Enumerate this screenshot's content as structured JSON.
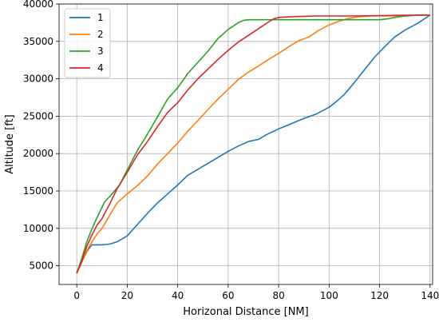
{
  "chart_data": {
    "type": "line",
    "title": "",
    "xlabel": "Horizonal Distance [NM]",
    "ylabel": "Altitude [ft]",
    "xlim": [
      -7,
      141
    ],
    "ylim": [
      2500,
      40000
    ],
    "xticks": [
      0,
      20,
      40,
      60,
      80,
      100,
      120,
      140
    ],
    "yticks": [
      5000,
      10000,
      15000,
      20000,
      25000,
      30000,
      35000,
      40000
    ],
    "grid": true,
    "legend_position": "top-left",
    "series": [
      {
        "name": "1",
        "color": "#1f77b4",
        "x": [
          0,
          2,
          4,
          6,
          8,
          10,
          13,
          16,
          20,
          24,
          28,
          32,
          36,
          40,
          44,
          48,
          52,
          56,
          60,
          64,
          68,
          72,
          75,
          80,
          85,
          90,
          95,
          100,
          103,
          106,
          110,
          114,
          118,
          122,
          126,
          130,
          135,
          140
        ],
        "y": [
          4000,
          5500,
          6900,
          7800,
          7800,
          7800,
          7900,
          8200,
          9000,
          10500,
          12000,
          13400,
          14600,
          15800,
          17100,
          17900,
          18700,
          19500,
          20300,
          21000,
          21600,
          21900,
          22500,
          23300,
          24000,
          24700,
          25300,
          26200,
          27000,
          27900,
          29500,
          31200,
          32900,
          34300,
          35600,
          36500,
          37400,
          38500
        ]
      },
      {
        "name": "2",
        "color": "#ff7f0e",
        "x": [
          0,
          2,
          4,
          6,
          8,
          10,
          13,
          16,
          20,
          24,
          28,
          32,
          36,
          40,
          44,
          48,
          52,
          56,
          60,
          64,
          68,
          72,
          76,
          80,
          84,
          88,
          92,
          96,
          100,
          104,
          108,
          112,
          116,
          120,
          125,
          130,
          135,
          140
        ],
        "y": [
          4000,
          5500,
          7000,
          8200,
          9200,
          10000,
          11700,
          13400,
          14600,
          15700,
          17000,
          18600,
          20000,
          21400,
          23000,
          24400,
          25900,
          27300,
          28600,
          29900,
          30900,
          31700,
          32600,
          33400,
          34300,
          35100,
          35600,
          36500,
          37200,
          37700,
          38100,
          38300,
          38400,
          38400,
          38400,
          38400,
          38500,
          38500
        ]
      },
      {
        "name": "3",
        "color": "#2ca02c",
        "x": [
          0,
          2,
          4,
          6,
          8,
          11,
          14,
          17,
          20,
          24,
          28,
          32,
          36,
          40,
          44,
          48,
          52,
          56,
          60,
          64,
          66,
          68,
          70,
          75,
          80,
          90,
          100,
          110,
          120,
          123,
          126,
          130,
          135,
          140
        ],
        "y": [
          4000,
          6000,
          8200,
          9900,
          11400,
          13500,
          14600,
          15800,
          17800,
          20400,
          22600,
          24900,
          27300,
          28800,
          30700,
          32200,
          33700,
          35400,
          36600,
          37500,
          37800,
          37900,
          37900,
          37900,
          37900,
          37900,
          37900,
          37900,
          37900,
          38000,
          38200,
          38400,
          38500,
          38500
        ]
      },
      {
        "name": "4",
        "color": "#d62728",
        "x": [
          0,
          2,
          4,
          6,
          8,
          10,
          13,
          16,
          20,
          24,
          28,
          32,
          36,
          40,
          44,
          48,
          52,
          56,
          60,
          64,
          68,
          72,
          76,
          78,
          80,
          85,
          90,
          95,
          100,
          110,
          120,
          130,
          140
        ],
        "y": [
          4000,
          5600,
          7600,
          9100,
          10400,
          11300,
          13200,
          15300,
          17500,
          19800,
          21600,
          23600,
          25500,
          26800,
          28500,
          30000,
          31300,
          32600,
          33800,
          34900,
          35800,
          36700,
          37600,
          38000,
          38200,
          38300,
          38350,
          38400,
          38400,
          38400,
          38450,
          38500,
          38500
        ]
      }
    ]
  }
}
